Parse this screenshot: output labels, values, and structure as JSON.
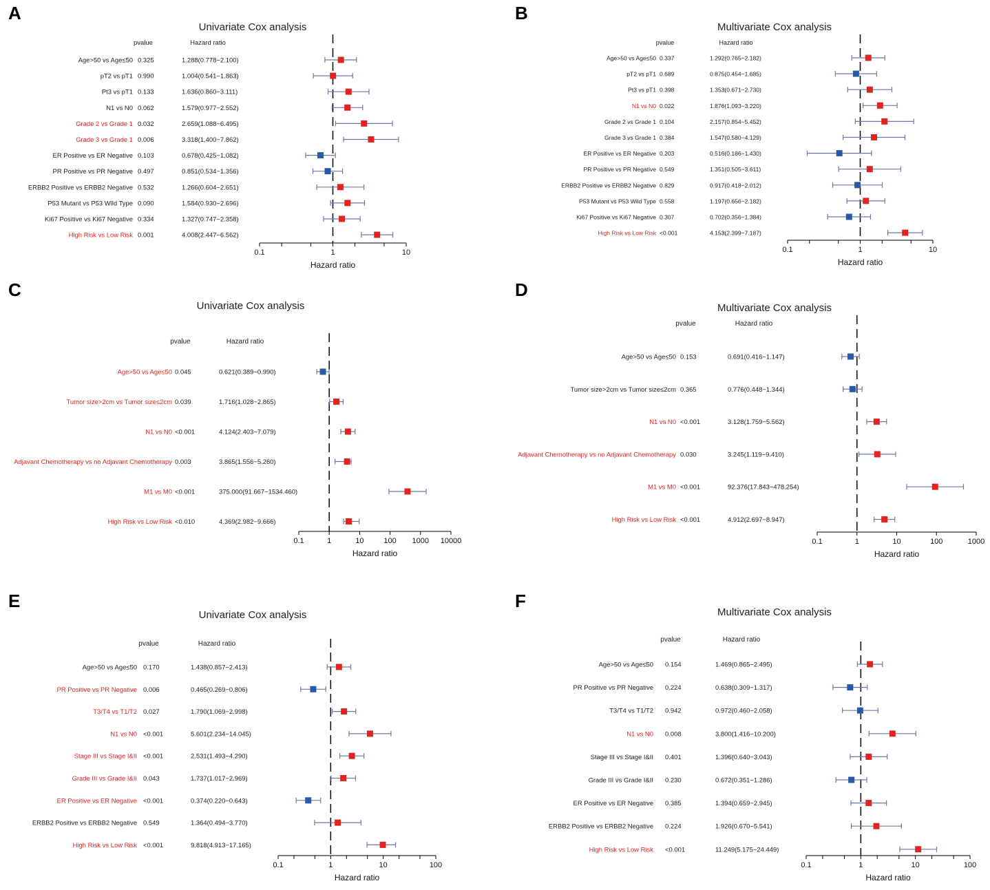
{
  "colors": {
    "risk": "#e02420",
    "protective": "#2a59a8",
    "sig_label": "#e02420",
    "normal_label": "#222222",
    "whisker": "#6a78a8",
    "axis": "#000000"
  },
  "chart_data": [
    {
      "panel": "A",
      "type": "forest",
      "scale": "log",
      "title": "Univariate Cox analysis",
      "pvalue_header": "pvalue",
      "hr_header": "Hazard ratio",
      "xlabel": "Hazard ratio",
      "xlim": [
        0.1,
        10
      ],
      "ticks": [
        "0.1",
        "1",
        "10"
      ],
      "minor_ticks": true,
      "rows": [
        {
          "label": "Age>50 vs Age≤50",
          "p": "0.325",
          "hr_text": "1.288(0.778−2.100)",
          "hr": 1.288,
          "lo": 0.778,
          "hi": 2.1,
          "sig": false
        },
        {
          "label": "pT2 vs pT1",
          "p": "0.990",
          "hr_text": "1.004(0.541−1.863)",
          "hr": 1.004,
          "lo": 0.541,
          "hi": 1.863,
          "sig": false
        },
        {
          "label": "Pt3 vs pT1",
          "p": "0.133",
          "hr_text": "1.636(0.860−3.111)",
          "hr": 1.636,
          "lo": 0.86,
          "hi": 3.111,
          "sig": false
        },
        {
          "label": "N1 vs N0",
          "p": "0.062",
          "hr_text": "1.579(0.977−2.552)",
          "hr": 1.579,
          "lo": 0.977,
          "hi": 2.552,
          "sig": false
        },
        {
          "label": "Grade 2 vs Grade 1",
          "p": "0.032",
          "hr_text": "2.659(1.088−6.495)",
          "hr": 2.659,
          "lo": 1.088,
          "hi": 6.495,
          "sig": true
        },
        {
          "label": "Grade 3 vs Grade 1",
          "p": "0.006",
          "hr_text": "3.318(1.400−7.862)",
          "hr": 3.318,
          "lo": 1.4,
          "hi": 7.862,
          "sig": true
        },
        {
          "label": "ER Positive vs ER Negative",
          "p": "0.103",
          "hr_text": "0.678(0.425−1.082)",
          "hr": 0.678,
          "lo": 0.425,
          "hi": 1.082,
          "sig": false
        },
        {
          "label": "PR Positive vs PR Negative",
          "p": "0.497",
          "hr_text": "0.851(0.534−1.356)",
          "hr": 0.851,
          "lo": 0.534,
          "hi": 1.356,
          "sig": false
        },
        {
          "label": "ERBB2 Positive vs ERBB2 Negative",
          "p": "0.532",
          "hr_text": "1.266(0.604−2.651)",
          "hr": 1.266,
          "lo": 0.604,
          "hi": 2.651,
          "sig": false
        },
        {
          "label": "P53 Mutant vs P53 Wild Type",
          "p": "0.090",
          "hr_text": "1.584(0.930−2.696)",
          "hr": 1.584,
          "lo": 0.93,
          "hi": 2.696,
          "sig": false
        },
        {
          "label": "Ki67 Positive vs Ki67 Negative",
          "p": "0.334",
          "hr_text": "1.327(0.747−2.358)",
          "hr": 1.327,
          "lo": 0.747,
          "hi": 2.358,
          "sig": false
        },
        {
          "label": "High Risk vs Low Risk",
          "p": "0.001",
          "hr_text": "4.008(2.447−6.562)",
          "hr": 4.008,
          "lo": 2.447,
          "hi": 6.562,
          "sig": true
        }
      ]
    },
    {
      "panel": "B",
      "type": "forest",
      "scale": "log",
      "title": "Multivariate Cox analysis",
      "pvalue_header": "pvalue",
      "hr_header": "Hazard ratio",
      "xlabel": "Hazard ratio",
      "xlim": [
        0.1,
        10
      ],
      "ticks": [
        "0.1",
        "1",
        "10"
      ],
      "minor_ticks": true,
      "rows": [
        {
          "label": "Age>50 vs Age≤50",
          "p": "0.337",
          "hr_text": "1.292(0.765−2.182)",
          "hr": 1.292,
          "lo": 0.765,
          "hi": 2.182,
          "sig": false
        },
        {
          "label": "pT2 vs pT1",
          "p": "0.689",
          "hr_text": "0.875(0.454−1.685)",
          "hr": 0.875,
          "lo": 0.454,
          "hi": 1.685,
          "sig": false
        },
        {
          "label": "Pt3 vs pT1",
          "p": "0.398",
          "hr_text": "1.353(0.671−2.730)",
          "hr": 1.353,
          "lo": 0.671,
          "hi": 2.73,
          "sig": false
        },
        {
          "label": "N1 vs N0",
          "p": "0.022",
          "hr_text": "1.876(1.093−3.220)",
          "hr": 1.876,
          "lo": 1.093,
          "hi": 3.22,
          "sig": true
        },
        {
          "label": "Grade 2 vs Grade 1",
          "p": "0.104",
          "hr_text": "2.157(0.854−5.452)",
          "hr": 2.157,
          "lo": 0.854,
          "hi": 5.452,
          "sig": false
        },
        {
          "label": "Grade 3 vs Grade 1",
          "p": "0.384",
          "hr_text": "1.547(0.580−4.129)",
          "hr": 1.547,
          "lo": 0.58,
          "hi": 4.129,
          "sig": false
        },
        {
          "label": "ER Positive vs ER Negative",
          "p": "0.203",
          "hr_text": "0.516(0.186−1.430)",
          "hr": 0.516,
          "lo": 0.186,
          "hi": 1.43,
          "sig": false
        },
        {
          "label": "PR Positive vs PR Negative",
          "p": "0.549",
          "hr_text": "1.351(0.505−3.611)",
          "hr": 1.351,
          "lo": 0.505,
          "hi": 3.611,
          "sig": false
        },
        {
          "label": "ERBB2 Positive vs ERBB2 Negative",
          "p": "0.829",
          "hr_text": "0.917(0.418−2.012)",
          "hr": 0.917,
          "lo": 0.418,
          "hi": 2.012,
          "sig": false
        },
        {
          "label": "P53 Mutant vs P53 Wild Type",
          "p": "0.558",
          "hr_text": "1.197(0.656−2.182)",
          "hr": 1.197,
          "lo": 0.656,
          "hi": 2.182,
          "sig": false
        },
        {
          "label": "Ki67 Positive vs Ki67 Negative",
          "p": "0.307",
          "hr_text": "0.702(0.356−1.384)",
          "hr": 0.702,
          "lo": 0.356,
          "hi": 1.384,
          "sig": false
        },
        {
          "label": "High Risk vs Low Risk",
          "p": "<0.001",
          "hr_text": "4.153(2.399−7.187)",
          "hr": 4.153,
          "lo": 2.399,
          "hi": 7.187,
          "sig": true
        }
      ]
    },
    {
      "panel": "C",
      "type": "forest",
      "scale": "log",
      "title": "Univariate Cox analysis",
      "pvalue_header": "pvalue",
      "hr_header": "Hazard ratio",
      "xlabel": "Hazard ratio",
      "xlim": [
        0.1,
        10000
      ],
      "ticks": [
        "0.1",
        "1",
        "10",
        "100",
        "1000",
        "10000"
      ],
      "minor_ticks": false,
      "rows": [
        {
          "label": "Age>50 vs Age≤50",
          "p": "0.045",
          "hr_text": "0.621(0.389−0.990)",
          "hr": 0.621,
          "lo": 0.389,
          "hi": 0.99,
          "sig": true
        },
        {
          "label": "Tumor size>2cm vs Tumor size≤2cm",
          "p": "0.039",
          "hr_text": "1.716(1.028−2.865)",
          "hr": 1.716,
          "lo": 1.028,
          "hi": 2.865,
          "sig": true
        },
        {
          "label": "N1 vs N0",
          "p": "<0.001",
          "hr_text": "4.124(2.403−7.079)",
          "hr": 4.124,
          "lo": 2.403,
          "hi": 7.079,
          "sig": true
        },
        {
          "label": "Adjavant Chemotherapy vs no Adjavant Chemotherapy",
          "p": "0.003",
          "hr_text": "3.865(1.556−5.260)",
          "hr": 3.865,
          "lo": 1.556,
          "hi": 5.26,
          "sig": true
        },
        {
          "label": "M1 vs M0",
          "p": "<0.001",
          "hr_text": "375.000(91.667−1534.460)",
          "hr": 375.0,
          "lo": 91.667,
          "hi": 1534.46,
          "sig": true
        },
        {
          "label": "High Risk vs Low Risk",
          "p": "<0.010",
          "hr_text": "4.369(2.982−9.666)",
          "hr": 4.369,
          "lo": 2.982,
          "hi": 9.666,
          "sig": true
        }
      ]
    },
    {
      "panel": "D",
      "type": "forest",
      "scale": "log",
      "title": "Multivariate Cox analysis",
      "pvalue_header": "pvalue",
      "hr_header": "Hazard ratio",
      "xlabel": "Hazard ratio",
      "xlim": [
        0.1,
        1000
      ],
      "ticks": [
        "0.1",
        "1",
        "10",
        "100",
        "1000"
      ],
      "minor_ticks": false,
      "rows": [
        {
          "label": "Age>50 vs Age≤50",
          "p": "0.153",
          "hr_text": "0.691(0.416−1.147)",
          "hr": 0.691,
          "lo": 0.416,
          "hi": 1.147,
          "sig": false
        },
        {
          "label": "Tumor size>2cm vs Tumor size≤2cm",
          "p": "0.365",
          "hr_text": "0.776(0.448−1.344)",
          "hr": 0.776,
          "lo": 0.448,
          "hi": 1.344,
          "sig": false
        },
        {
          "label": "N1 vs N0",
          "p": "<0.001",
          "hr_text": "3.128(1.759−5.562)",
          "hr": 3.128,
          "lo": 1.759,
          "hi": 5.562,
          "sig": true
        },
        {
          "label": "Adjavant Chemotherapy vs no Adjavant Chemotherapy",
          "p": "0.030",
          "hr_text": "3.245(1.119−9.410)",
          "hr": 3.245,
          "lo": 1.119,
          "hi": 9.41,
          "sig": true
        },
        {
          "label": "M1 vs M0",
          "p": "<0.001",
          "hr_text": "92.376(17.843−478.254)",
          "hr": 92.376,
          "lo": 17.843,
          "hi": 478.254,
          "sig": true
        },
        {
          "label": "High Risk vs Low Risk",
          "p": "<0.001",
          "hr_text": "4.912(2.697−8.947)",
          "hr": 4.912,
          "lo": 2.697,
          "hi": 8.947,
          "sig": true
        }
      ]
    },
    {
      "panel": "E",
      "type": "forest",
      "scale": "log",
      "title": "Univariate Cox analysis",
      "pvalue_header": "pvalue",
      "hr_header": "Hazard ratio",
      "xlabel": "Hazard ratio",
      "xlim": [
        0.1,
        100
      ],
      "ticks": [
        "0.1",
        "1",
        "10",
        "100"
      ],
      "minor_ticks": true,
      "rows": [
        {
          "label": "Age>50 vs Age≤50",
          "p": "0.170",
          "hr_text": "1.438(0.857−2.413)",
          "hr": 1.438,
          "lo": 0.857,
          "hi": 2.413,
          "sig": false
        },
        {
          "label": "PR Positive vs PR Negative",
          "p": "0.006",
          "hr_text": "0.465(0.269−0.806)",
          "hr": 0.465,
          "lo": 0.269,
          "hi": 0.806,
          "sig": true
        },
        {
          "label": "T3/T4 vs T1/T2",
          "p": "0.027",
          "hr_text": "1.790(1.069−2.998)",
          "hr": 1.79,
          "lo": 1.069,
          "hi": 2.998,
          "sig": true
        },
        {
          "label": "N1 vs N0",
          "p": "<0.001",
          "hr_text": "5.601(2.234−14.045)",
          "hr": 5.601,
          "lo": 2.234,
          "hi": 14.045,
          "sig": true
        },
        {
          "label": "Stage III vs Stage I&II",
          "p": "<0.001",
          "hr_text": "2.531(1.493−4.290)",
          "hr": 2.531,
          "lo": 1.493,
          "hi": 4.29,
          "sig": true
        },
        {
          "label": "Grade III vs Grade I&II",
          "p": "0.043",
          "hr_text": "1.737(1.017−2.969)",
          "hr": 1.737,
          "lo": 1.017,
          "hi": 2.969,
          "sig": true
        },
        {
          "label": "ER Positive vs ER Negative",
          "p": "<0.001",
          "hr_text": "0.374(0.220−0.643)",
          "hr": 0.374,
          "lo": 0.22,
          "hi": 0.643,
          "sig": true
        },
        {
          "label": "ERBB2 Positive vs ERBB2 Negative",
          "p": "0.549",
          "hr_text": "1.364(0.494−3.770)",
          "hr": 1.364,
          "lo": 0.494,
          "hi": 3.77,
          "sig": false
        },
        {
          "label": "High Risk vs Low Risk",
          "p": "<0.001",
          "hr_text": "9.818(4.913−17.165)",
          "hr": 9.818,
          "lo": 4.913,
          "hi": 17.165,
          "sig": true
        }
      ]
    },
    {
      "panel": "F",
      "type": "forest",
      "scale": "log",
      "title": "Multivariate Cox analysis",
      "pvalue_header": "pvalue",
      "hr_header": "Hazard ratio",
      "xlabel": "Hazard ratio",
      "xlim": [
        0.1,
        100
      ],
      "ticks": [
        "0.1",
        "1",
        "10",
        "100"
      ],
      "minor_ticks": true,
      "rows": [
        {
          "label": "Age>50 vs Age≤50",
          "p": "0.154",
          "hr_text": "1.469(0.865−2.495)",
          "hr": 1.469,
          "lo": 0.865,
          "hi": 2.495,
          "sig": false
        },
        {
          "label": "PR Positive vs PR Negative",
          "p": "0.224",
          "hr_text": "0.638(0.309−1.317)",
          "hr": 0.638,
          "lo": 0.309,
          "hi": 1.317,
          "sig": false
        },
        {
          "label": "T3/T4 vs T1/T2",
          "p": "0.942",
          "hr_text": "0.972(0.460−2.058)",
          "hr": 0.972,
          "lo": 0.46,
          "hi": 2.058,
          "sig": false
        },
        {
          "label": "N1 vs N0",
          "p": "0.008",
          "hr_text": "3.800(1.416−10.200)",
          "hr": 3.8,
          "lo": 1.416,
          "hi": 10.2,
          "sig": true
        },
        {
          "label": "Stage III vs Stage I&II",
          "p": "0.401",
          "hr_text": "1.396(0.640−3.043)",
          "hr": 1.396,
          "lo": 0.64,
          "hi": 3.043,
          "sig": false
        },
        {
          "label": "Grade III vs Grade I&II",
          "p": "0.230",
          "hr_text": "0.672(0.351−1.286)",
          "hr": 0.672,
          "lo": 0.351,
          "hi": 1.286,
          "sig": false
        },
        {
          "label": "ER Positive vs ER Negative",
          "p": "0.385",
          "hr_text": "1.394(0.659−2.945)",
          "hr": 1.394,
          "lo": 0.659,
          "hi": 2.945,
          "sig": false
        },
        {
          "label": "ERBB2 Positive vs ERBB2 Negative",
          "p": "0.224",
          "hr_text": "1.926(0.670−5.541)",
          "hr": 1.926,
          "lo": 0.67,
          "hi": 5.541,
          "sig": false
        },
        {
          "label": "High Risk vs Low Risk",
          "p": "<0.001",
          "hr_text": "11.249(5.175−24.449)",
          "hr": 11.249,
          "lo": 5.175,
          "hi": 24.449,
          "sig": true
        }
      ]
    }
  ]
}
